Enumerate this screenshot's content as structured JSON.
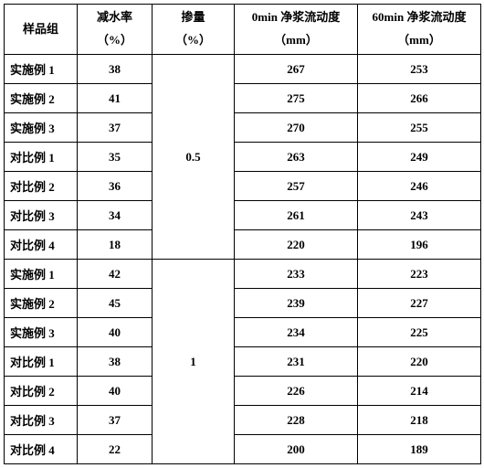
{
  "table": {
    "columns": [
      {
        "line1": "样品组",
        "line2": ""
      },
      {
        "line1": "减水率",
        "line2": "（%）"
      },
      {
        "line1": "掺量",
        "line2": "（%）"
      },
      {
        "line1": "0min 净浆流动度",
        "line2": "（mm）"
      },
      {
        "line1": "60min 净浆流动度",
        "line2": "（mm）"
      }
    ],
    "groups": [
      {
        "dosage": "0.5",
        "rows": [
          {
            "sample": "实施例 1",
            "reduction": "38",
            "flow0": "267",
            "flow60": "253"
          },
          {
            "sample": "实施例 2",
            "reduction": "41",
            "flow0": "275",
            "flow60": "266"
          },
          {
            "sample": "实施例 3",
            "reduction": "37",
            "flow0": "270",
            "flow60": "255"
          },
          {
            "sample": "对比例 1",
            "reduction": "35",
            "flow0": "263",
            "flow60": "249"
          },
          {
            "sample": "对比例 2",
            "reduction": "36",
            "flow0": "257",
            "flow60": "246"
          },
          {
            "sample": "对比例 3",
            "reduction": "34",
            "flow0": "261",
            "flow60": "243"
          },
          {
            "sample": "对比例 4",
            "reduction": "18",
            "flow0": "220",
            "flow60": "196"
          }
        ]
      },
      {
        "dosage": "1",
        "rows": [
          {
            "sample": "实施例 1",
            "reduction": "42",
            "flow0": "233",
            "flow60": "223"
          },
          {
            "sample": "实施例 2",
            "reduction": "45",
            "flow0": "239",
            "flow60": "227"
          },
          {
            "sample": "实施例 3",
            "reduction": "40",
            "flow0": "234",
            "flow60": "225"
          },
          {
            "sample": "对比例 1",
            "reduction": "38",
            "flow0": "231",
            "flow60": "220"
          },
          {
            "sample": "对比例 2",
            "reduction": "40",
            "flow0": "226",
            "flow60": "214"
          },
          {
            "sample": "对比例 3",
            "reduction": "37",
            "flow0": "228",
            "flow60": "218"
          },
          {
            "sample": "对比例 4",
            "reduction": "22",
            "flow0": "200",
            "flow60": "189"
          }
        ]
      }
    ]
  }
}
